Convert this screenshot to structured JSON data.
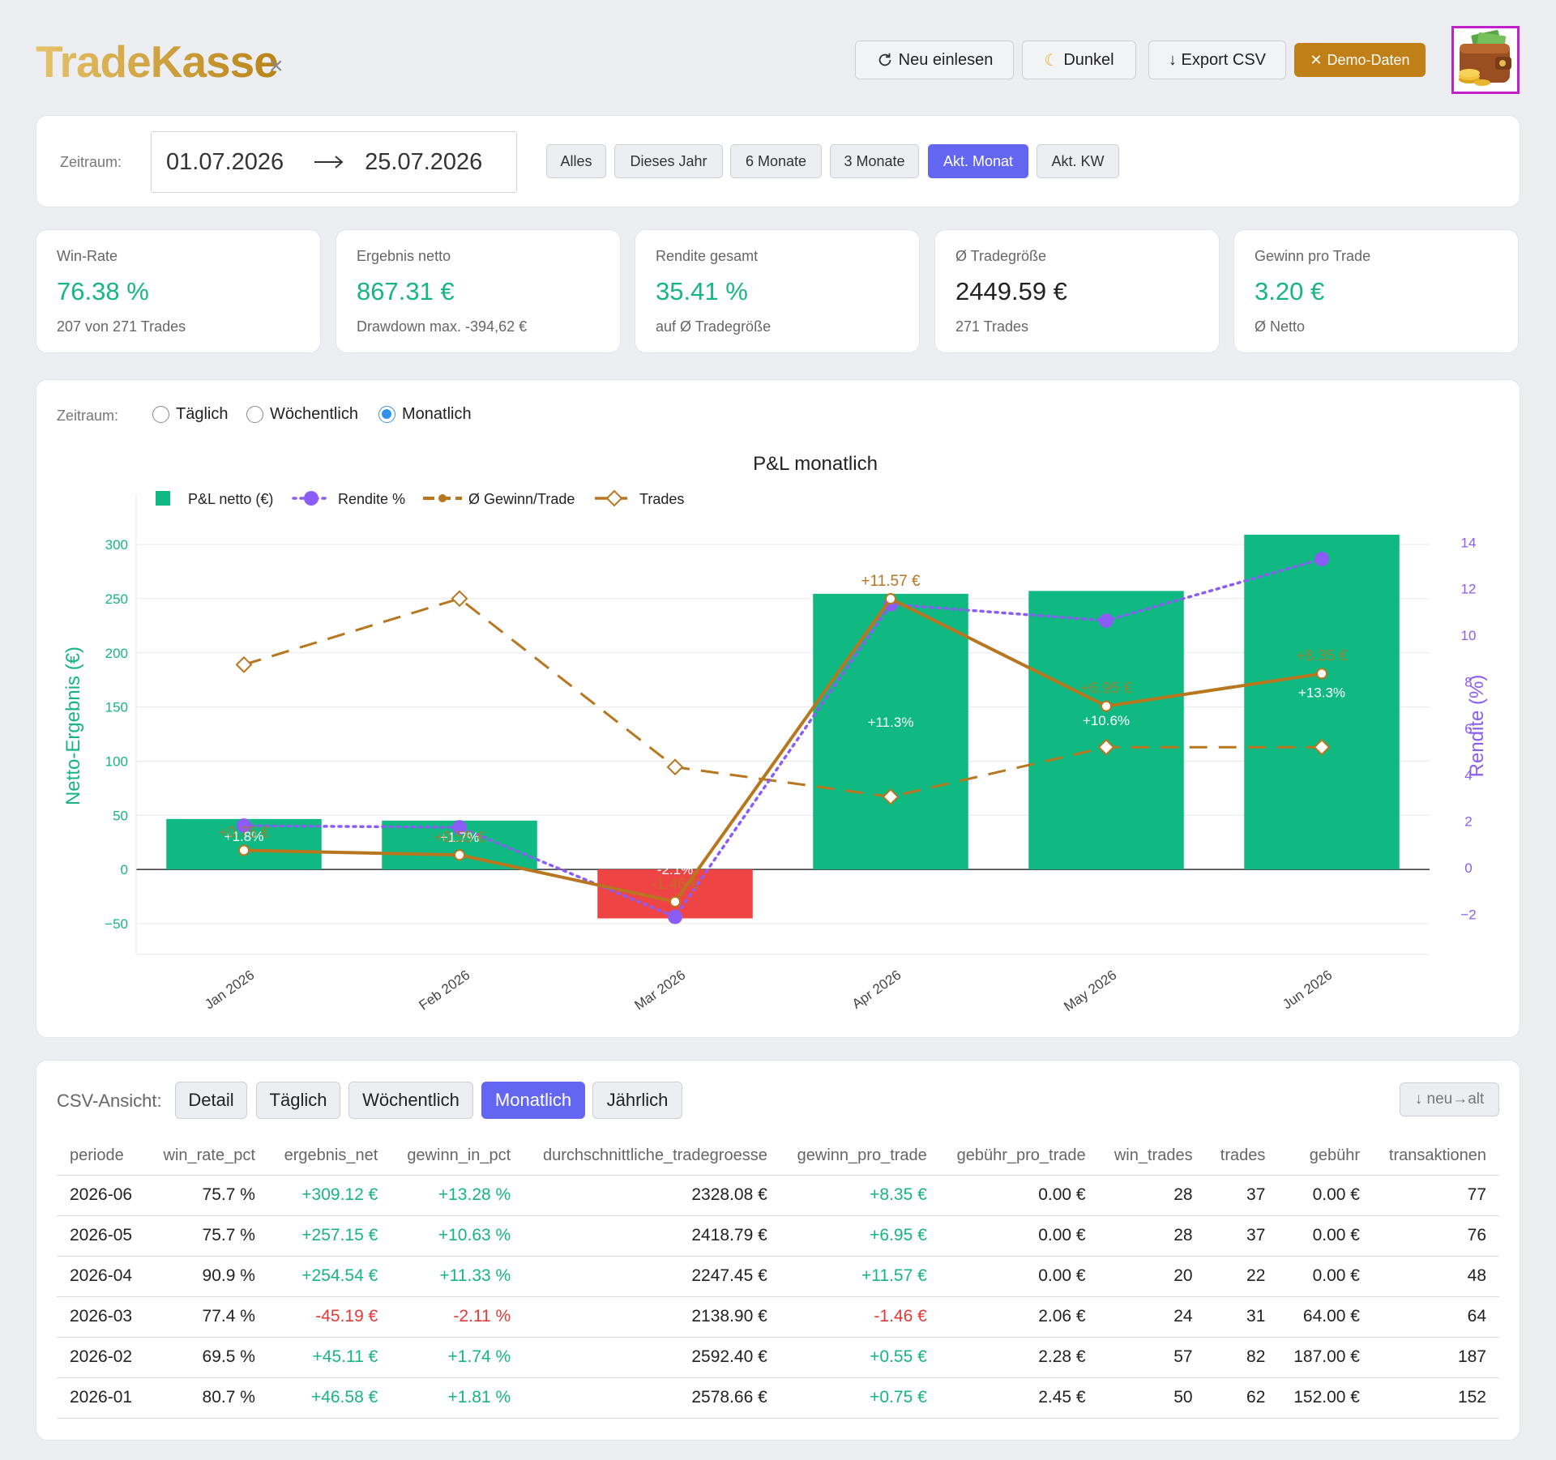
{
  "app": {
    "logo_part1": "Trade",
    "logo_part2": "Kasse",
    "logo_close": "×",
    "buttons": {
      "reload": "Neu einlesen",
      "dark": "Dunkel",
      "export": "↓ Export CSV",
      "demo": "Demo-Daten"
    }
  },
  "range": {
    "label": "Zeitraum:",
    "from": "01.07.2026",
    "to": "25.07.2026",
    "presets": [
      "Alles",
      "Dieses Jahr",
      "6 Monate",
      "3 Monate",
      "Akt. Monat",
      "Akt. KW"
    ],
    "active_preset": "Akt. Monat"
  },
  "stats": [
    {
      "title": "Win-Rate",
      "value": "76.38 %",
      "sub": "207 von 271 Trades",
      "tone": "green"
    },
    {
      "title": "Ergebnis netto",
      "value": "867.31 €",
      "sub": "Drawdown max. -394,62 €",
      "tone": "green"
    },
    {
      "title": "Rendite gesamt",
      "value": "35.41 %",
      "sub": "auf Ø Tradegröße",
      "tone": "green"
    },
    {
      "title": "Ø Tradegröße",
      "value": "2449.59 €",
      "sub": "271 Trades",
      "tone": "neutral"
    },
    {
      "title": "Gewinn pro Trade",
      "value": "3.20 €",
      "sub": "Ø Netto",
      "tone": "green"
    }
  ],
  "chart_panel": {
    "label": "Zeitraum:",
    "options": [
      "Täglich",
      "Wöchentlich",
      "Monatlich"
    ],
    "selected": "Monatlich"
  },
  "chart_data": {
    "type": "bar",
    "title": "P&L monatlich",
    "categories": [
      "Jan 2026",
      "Feb 2026",
      "Mar 2026",
      "Apr 2026",
      "May 2026",
      "Jun 2026"
    ],
    "ylabel": "Netto-Ergebnis (€)",
    "y2label": "Rendite (%)",
    "ylim": [
      -65,
      330
    ],
    "y2lim": [
      -3.1,
      15.3
    ],
    "yticks": [
      -50,
      0,
      50,
      100,
      150,
      200,
      250,
      300
    ],
    "y2ticks": [
      -2,
      0,
      2,
      4,
      6,
      8,
      10,
      12,
      14
    ],
    "legend_position": "top-left",
    "grid": true,
    "colors": {
      "positive": "#10b981",
      "negative": "#ef4444",
      "rendite": "#8b5cf6",
      "gewinn": "#b8761f",
      "trades": "#b8761f",
      "axis_left": "#17b581",
      "axis_right": "#8b5cf6"
    },
    "series": [
      {
        "name": "P&L netto (€)",
        "kind": "bar",
        "values": [
          46.58,
          45.11,
          -45.19,
          254.54,
          257.15,
          309.12
        ]
      },
      {
        "name": "Rendite %",
        "kind": "line-dotted",
        "axis": "y2",
        "values": [
          1.81,
          1.74,
          -2.11,
          11.33,
          10.63,
          13.28
        ],
        "labels": [
          "+1.8%",
          "+1.7%",
          "-2.1%",
          "+11.3%",
          "+10.6%",
          "+13.3%"
        ]
      },
      {
        "name": "Ø Gewinn/Trade",
        "kind": "line",
        "axis": "y",
        "values": [
          0.75,
          0.55,
          -1.46,
          11.57,
          6.95,
          8.35
        ],
        "labels": [
          "+0.75 €",
          "+0.55 €",
          "-1.46 €",
          "+11.57 €",
          "+6.95 €",
          "+8.35 €"
        ]
      },
      {
        "name": "Trades",
        "kind": "line-dashed",
        "axis": "y",
        "values": [
          62,
          82,
          31,
          22,
          37,
          37
        ]
      }
    ]
  },
  "csv": {
    "label": "CSV-Ansicht:",
    "views": [
      "Detail",
      "Täglich",
      "Wöchentlich",
      "Monatlich",
      "Jährlich"
    ],
    "active_view": "Monatlich",
    "sort_label": "↓ neu→alt",
    "columns": [
      "periode",
      "win_rate_pct",
      "ergebnis_net",
      "gewinn_in_pct",
      "durchschnittliche_tradegroesse",
      "gewinn_pro_trade",
      "gebühr_pro_trade",
      "win_trades",
      "trades",
      "gebühr",
      "transaktionen"
    ],
    "rows": [
      [
        "2026-06",
        "75.7 %",
        "+309.12 €",
        "+13.28 %",
        "2328.08 €",
        "+8.35 €",
        "0.00 €",
        "28",
        "37",
        "0.00 €",
        "77"
      ],
      [
        "2026-05",
        "75.7 %",
        "+257.15 €",
        "+10.63 %",
        "2418.79 €",
        "+6.95 €",
        "0.00 €",
        "28",
        "37",
        "0.00 €",
        "76"
      ],
      [
        "2026-04",
        "90.9 %",
        "+254.54 €",
        "+11.33 %",
        "2247.45 €",
        "+11.57 €",
        "0.00 €",
        "20",
        "22",
        "0.00 €",
        "48"
      ],
      [
        "2026-03",
        "77.4 %",
        "-45.19 €",
        "-2.11 %",
        "2138.90 €",
        "-1.46 €",
        "2.06 €",
        "24",
        "31",
        "64.00 €",
        "64"
      ],
      [
        "2026-02",
        "69.5 %",
        "+45.11 €",
        "+1.74 %",
        "2592.40 €",
        "+0.55 €",
        "2.28 €",
        "57",
        "82",
        "187.00 €",
        "187"
      ],
      [
        "2026-01",
        "80.7 %",
        "+46.58 €",
        "+1.81 %",
        "2578.66 €",
        "+0.75 €",
        "2.45 €",
        "50",
        "62",
        "152.00 €",
        "152"
      ]
    ]
  }
}
